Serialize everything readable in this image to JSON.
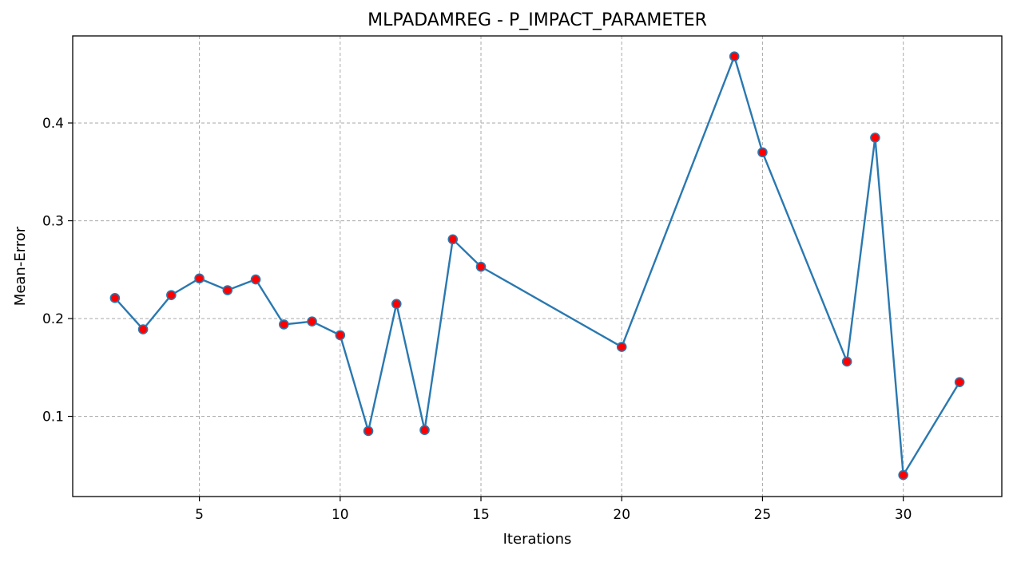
{
  "chart_data": {
    "type": "line",
    "title": "MLPADAMREG - P_IMPACT_PARAMETER",
    "xlabel": "Iterations",
    "ylabel": "Mean-Error",
    "xlim": [
      0.5,
      33.5
    ],
    "ylim": [
      0.018,
      0.489
    ],
    "xticks": [
      5,
      10,
      15,
      20,
      25,
      30
    ],
    "yticks": [
      0.1,
      0.2,
      0.3,
      0.4
    ],
    "xtick_labels": [
      "5",
      "10",
      "15",
      "20",
      "25",
      "30"
    ],
    "ytick_labels": [
      "0.1",
      "0.2",
      "0.3",
      "0.4"
    ],
    "grid": true,
    "grid_style": "dashed",
    "series": [
      {
        "x": [
          2,
          3,
          4,
          5,
          6,
          7,
          8,
          9,
          10,
          11,
          12,
          13,
          14,
          15,
          20,
          24,
          25,
          28,
          29,
          30,
          32
        ],
        "y": [
          0.221,
          0.189,
          0.224,
          0.241,
          0.229,
          0.24,
          0.194,
          0.197,
          0.183,
          0.085,
          0.215,
          0.086,
          0.281,
          0.253,
          0.171,
          0.468,
          0.37,
          0.156,
          0.385,
          0.04,
          0.135
        ],
        "line_color": "#2a78b0",
        "marker_face_color": "#ff0000",
        "marker_edge_color": "#2a78b0",
        "marker": "circle"
      }
    ]
  }
}
